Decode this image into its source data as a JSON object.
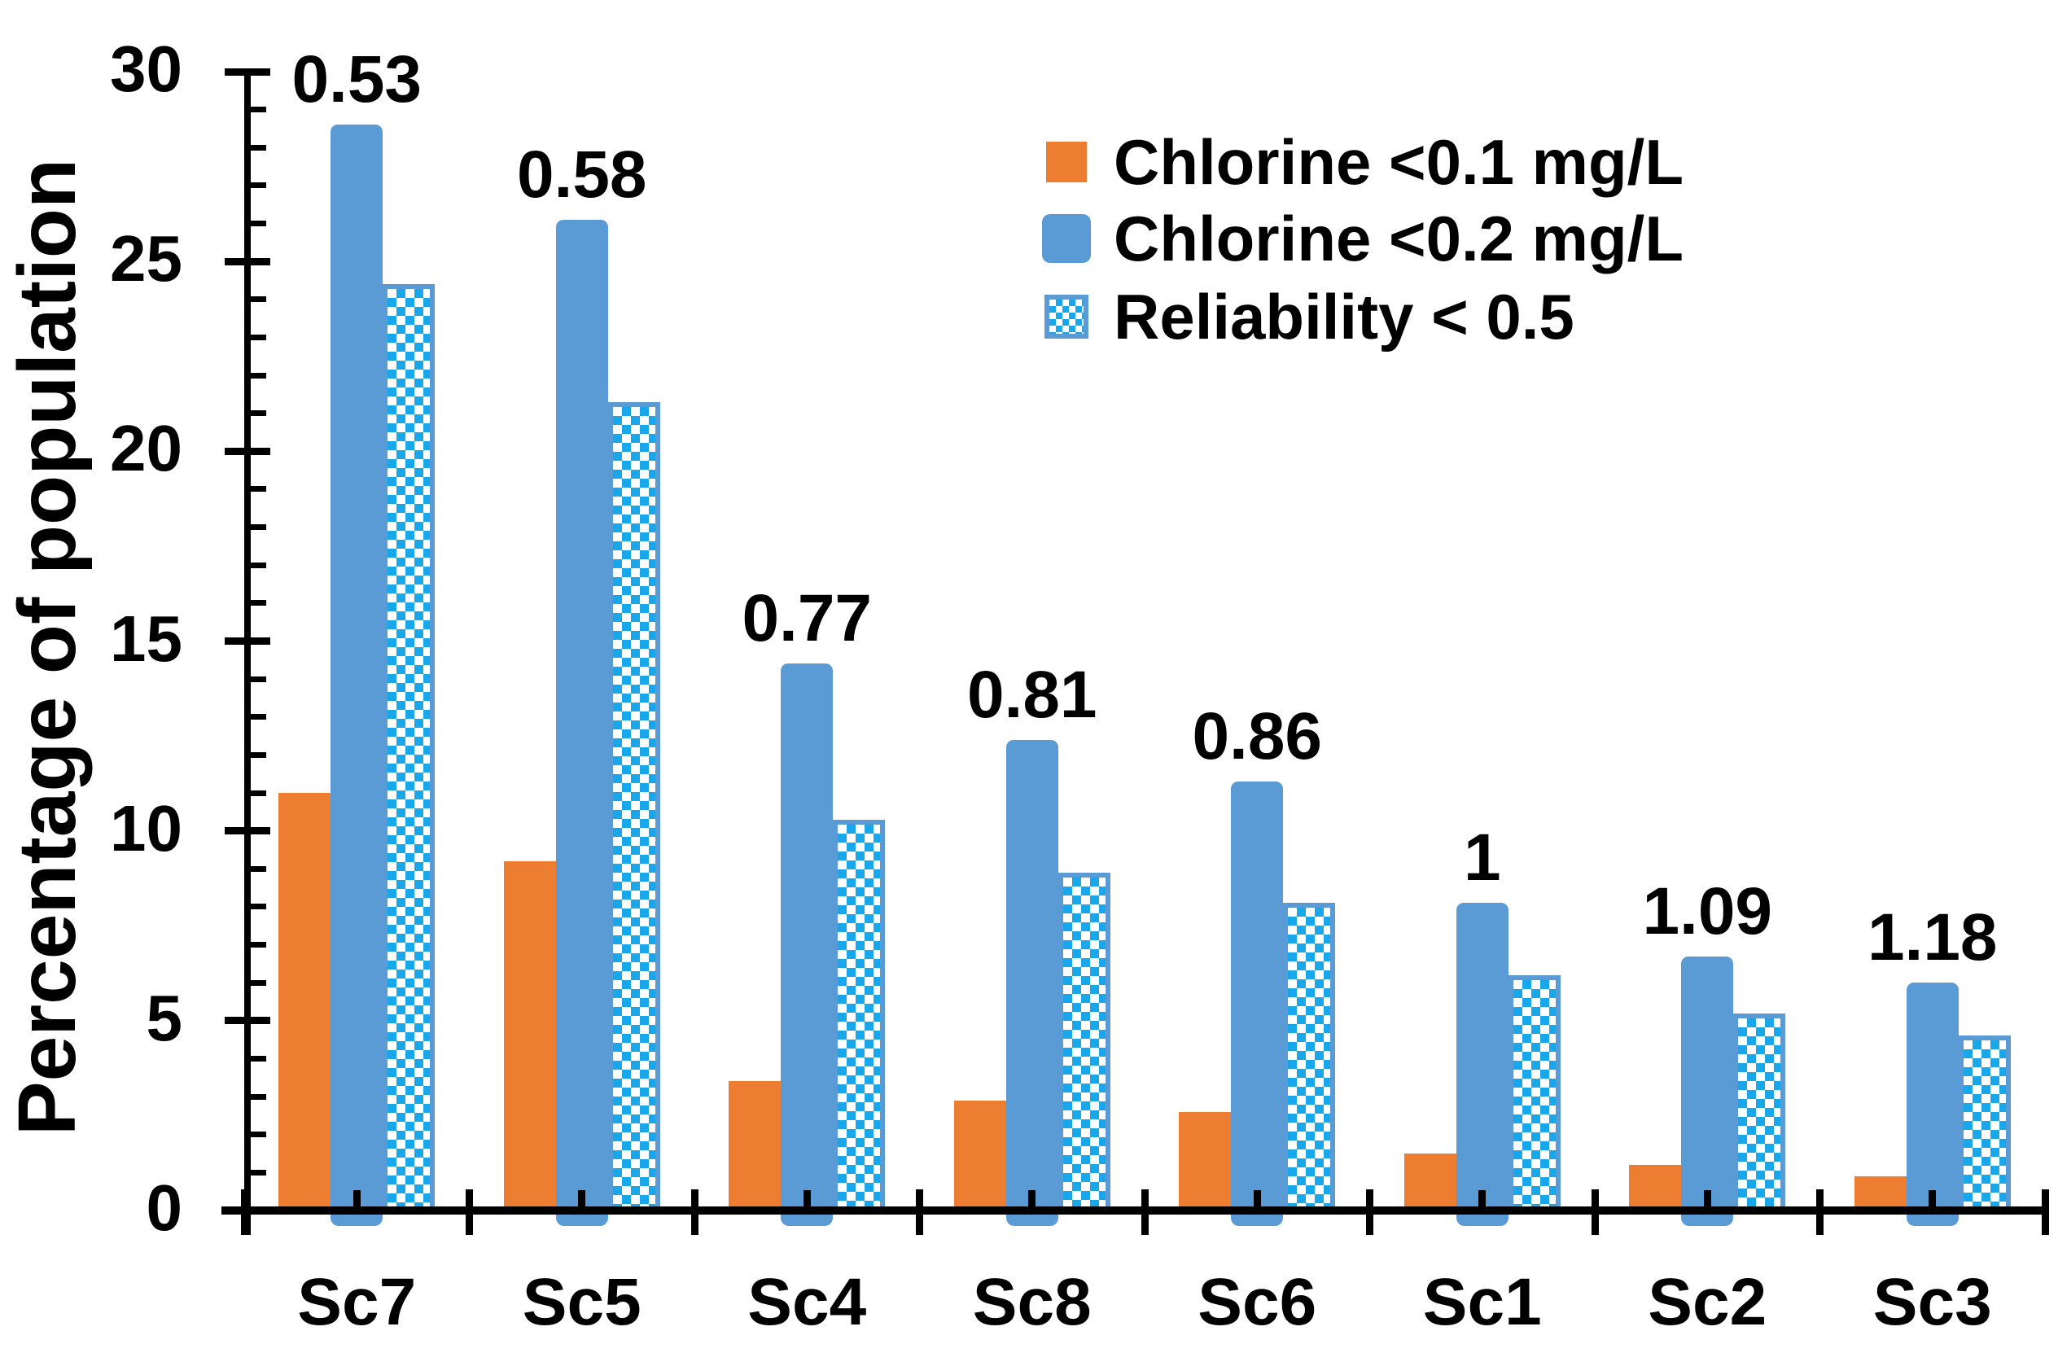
{
  "chart_data": {
    "type": "bar",
    "title": "",
    "xlabel": "",
    "ylabel": "Percentage of population",
    "categories": [
      "Sc7",
      "Sc5",
      "Sc4",
      "Sc8",
      "Sc6",
      "Sc1",
      "Sc2",
      "Sc3"
    ],
    "series": [
      {
        "name": "Chlorine <0.1 mg/L",
        "style": "solid-orange",
        "values": [
          11.0,
          9.2,
          3.4,
          2.9,
          2.6,
          1.5,
          1.2,
          0.9
        ]
      },
      {
        "name": "Chlorine <0.2 mg/L",
        "style": "solid-blue",
        "values": [
          28.6,
          26.1,
          14.4,
          12.4,
          11.3,
          8.1,
          6.7,
          6.0
        ]
      },
      {
        "name": "Reliability < 0.5",
        "style": "pattern-checker",
        "values": [
          24.4,
          21.3,
          10.3,
          8.9,
          8.1,
          6.2,
          5.2,
          4.6
        ]
      }
    ],
    "group_labels": [
      "0.53",
      "0.58",
      "0.77",
      "0.81",
      "0.86",
      "1",
      "1.09",
      "1.18"
    ],
    "ylim": [
      0,
      30
    ],
    "yticks": [
      0,
      5,
      10,
      15,
      20,
      25,
      30
    ],
    "ytick_minor_step": 1,
    "grid": false,
    "legend_position": "top-right",
    "colors": {
      "orange": "#ED7D31",
      "blue": "#5B9BD5",
      "pattern_fore": "#17A7EA",
      "pattern_back": "#FFFFFF",
      "axis": "#000000",
      "text": "#000000"
    }
  }
}
